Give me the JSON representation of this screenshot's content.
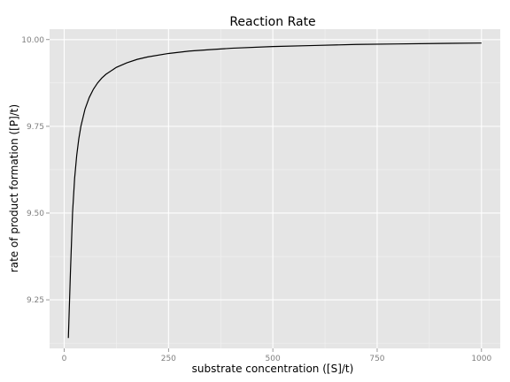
{
  "chart_data": {
    "type": "line",
    "title": "Reaction Rate",
    "xlabel": "substrate concentration ([S]/t)",
    "ylabel": "rate of product formation ([P]/t)",
    "xlim": [
      -35,
      1045
    ],
    "ylim": [
      9.11,
      10.03
    ],
    "x_ticks": [
      0,
      250,
      500,
      750,
      1000
    ],
    "x_tick_labels": [
      "0",
      "250",
      "500",
      "750",
      "1000"
    ],
    "y_ticks": [
      9.25,
      9.5,
      9.75,
      10.0
    ],
    "y_tick_labels": [
      "9.25",
      "9.50",
      "9.75",
      "10.00"
    ],
    "grid": true,
    "panel_background": "#e5e5e5",
    "gridline_color": "#ffffff",
    "line_color": "#000000",
    "series": [
      {
        "x": [
          10,
          15,
          20,
          25,
          30,
          35,
          40,
          50,
          60,
          70,
          80,
          90,
          100,
          125,
          150,
          175,
          200,
          250,
          300,
          350,
          400,
          500,
          600,
          700,
          800,
          900,
          1000
        ],
        "values": [
          9.14,
          9.33,
          9.5,
          9.6,
          9.666,
          9.714,
          9.75,
          9.8,
          9.833,
          9.857,
          9.875,
          9.889,
          9.9,
          9.92,
          9.933,
          9.943,
          9.95,
          9.96,
          9.967,
          9.971,
          9.975,
          9.98,
          9.983,
          9.986,
          9.9875,
          9.989,
          9.99
        ]
      }
    ]
  }
}
